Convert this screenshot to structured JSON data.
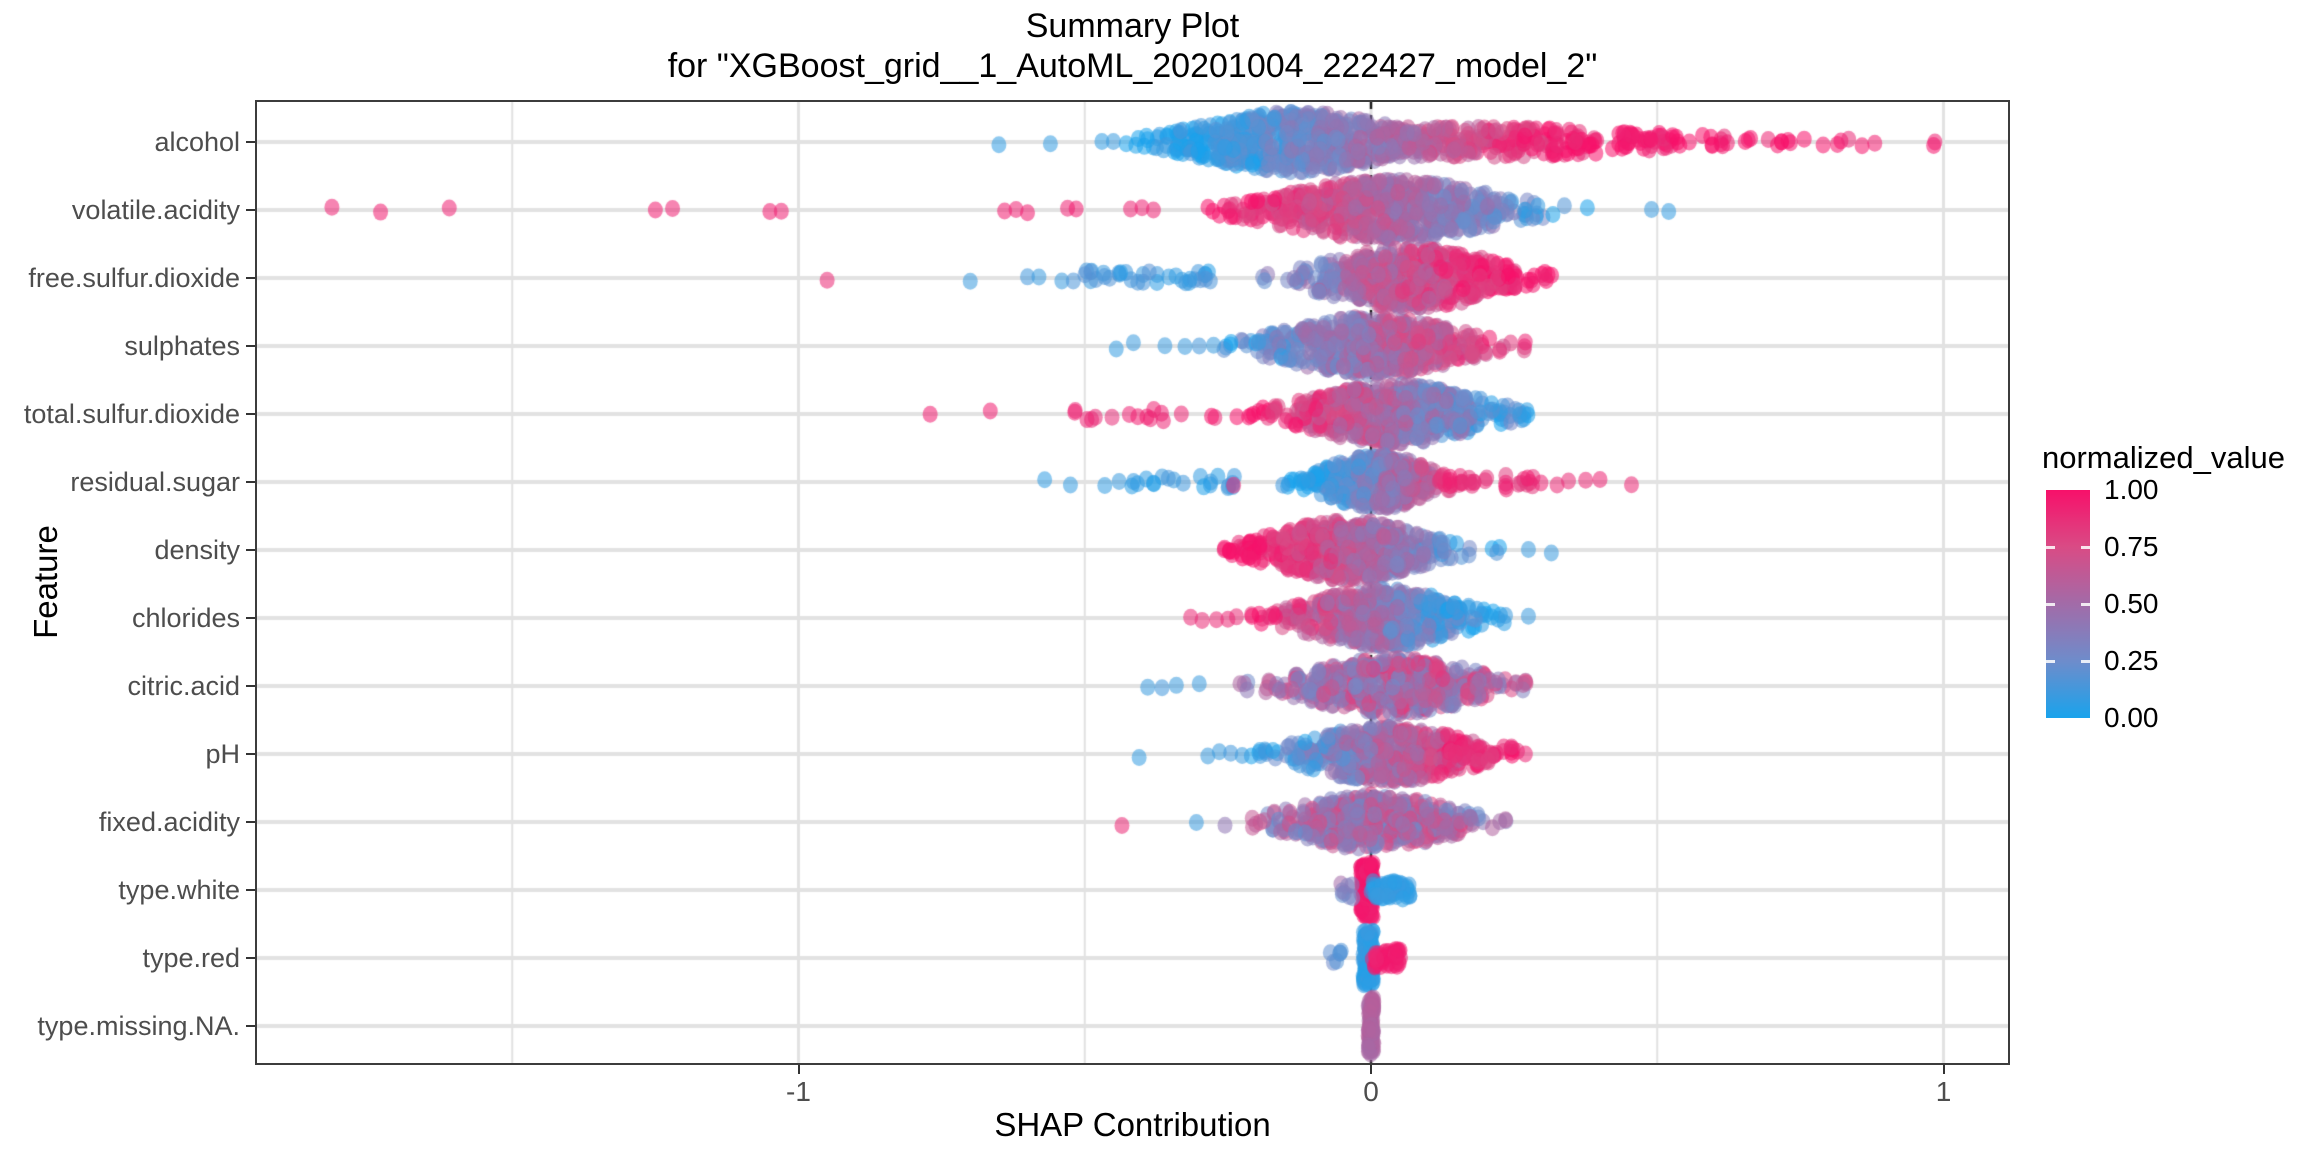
{
  "title": {
    "line1": "Summary Plot",
    "line2": "for \"XGBoost_grid__1_AutoML_20201004_222427_model_2\""
  },
  "axes": {
    "x_title": "SHAP Contribution",
    "y_title": "Feature",
    "x_ticks": [
      {
        "label": "-1",
        "value": -1
      },
      {
        "label": "0",
        "value": 0
      },
      {
        "label": "1",
        "value": 1
      }
    ],
    "x_minor_gridlines": [
      -1.5,
      -0.5,
      0.5
    ],
    "x_range": [
      -1.95,
      1.12
    ]
  },
  "legend": {
    "title": "normalized_value",
    "ticks": [
      {
        "label": "1.00",
        "value": 1.0
      },
      {
        "label": "0.75",
        "value": 0.75
      },
      {
        "label": "0.50",
        "value": 0.5
      },
      {
        "label": "0.25",
        "value": 0.25
      },
      {
        "label": "0.00",
        "value": 0.0
      }
    ],
    "gradient_low_to_high": [
      "#19A3EC",
      "#6E8CCB",
      "#A26BA8",
      "#D94B85",
      "#F7106A"
    ]
  },
  "colors": {
    "zero_line": "#1a1a1a",
    "gridline": "#e2e2e2",
    "panel_border": "#3c3c3c",
    "axis_text": "#4d4d4d",
    "point_alpha": 0.55
  },
  "chart_data": {
    "type": "scatter",
    "subtype": "shap-summary-beeswarm",
    "title": "Summary Plot for \"XGBoost_grid__1_AutoML_20201004_222427_model_2\"",
    "xlabel": "SHAP Contribution",
    "ylabel": "Feature",
    "xlim": [
      -1.95,
      1.12
    ],
    "zero_reference_line": 0,
    "color_scale": {
      "name": "normalized_value",
      "low": 0.0,
      "high": 1.0
    },
    "categories": [
      "alcohol",
      "volatile.acidity",
      "free.sulfur.dioxide",
      "sulphates",
      "total.sulfur.dioxide",
      "residual.sugar",
      "density",
      "chlorides",
      "citric.acid",
      "pH",
      "fixed.acidity",
      "type.white",
      "type.red",
      "type.missing.NA."
    ],
    "features": [
      {
        "name": "alcohol",
        "shap_range": [
          -0.65,
          0.99
        ],
        "color_map": {
          "x0": -0.3,
          "x1": 0.35,
          "noise": 0.16
        },
        "swarms": [
          {
            "center": -0.13,
            "sd": 0.11,
            "min": -0.44,
            "max": 0.3,
            "n": 620,
            "halfwidth": 30
          },
          {
            "center": 0.15,
            "sd": 0.25,
            "min": 0.01,
            "max": 1.0,
            "n": 300,
            "halfwidth": 15
          }
        ],
        "strips": [],
        "outliers": [
          {
            "x": -0.65,
            "t": 0.07
          },
          {
            "x": -0.56,
            "t": 0.08
          },
          {
            "x": -0.47,
            "t": 0.07
          },
          {
            "x": -0.45,
            "t": 0.1
          },
          {
            "x": 0.88,
            "t": 0.95
          },
          {
            "x": 0.985,
            "t": 0.93
          }
        ]
      },
      {
        "name": "volatile.acidity",
        "shap_range": [
          -1.82,
          0.52
        ],
        "color_map": {
          "x0": 0.42,
          "x1": -0.28,
          "noise": 0.16
        },
        "swarms": [
          {
            "center": 0.03,
            "sd": 0.12,
            "min": -0.34,
            "max": 0.5,
            "n": 620,
            "halfwidth": 30
          }
        ],
        "strips": [],
        "outliers": [
          {
            "x": -1.815,
            "t": 0.93
          },
          {
            "x": -1.73,
            "t": 0.95
          },
          {
            "x": -1.61,
            "t": 0.93
          },
          {
            "x": -1.25,
            "t": 0.95
          },
          {
            "x": -1.22,
            "t": 0.93
          },
          {
            "x": -1.05,
            "t": 0.95
          },
          {
            "x": -1.03,
            "t": 0.93
          },
          {
            "x": -0.64,
            "t": 0.95
          },
          {
            "x": -0.62,
            "t": 0.93
          },
          {
            "x": -0.6,
            "t": 0.95
          },
          {
            "x": -0.53,
            "t": 0.93
          },
          {
            "x": -0.515,
            "t": 0.95
          },
          {
            "x": -0.42,
            "t": 0.92
          },
          {
            "x": -0.4,
            "t": 0.93
          },
          {
            "x": -0.38,
            "t": 0.92
          },
          {
            "x": 0.49,
            "t": 0.1
          },
          {
            "x": 0.52,
            "t": 0.08
          }
        ]
      },
      {
        "name": "free.sulfur.dioxide",
        "shap_range": [
          -0.95,
          0.36
        ],
        "color_map": {
          "x0": -0.32,
          "x1": 0.26,
          "noise": 0.2
        },
        "swarms": [
          {
            "center": 0.07,
            "sd": 0.1,
            "min": -0.3,
            "max": 0.36,
            "n": 560,
            "halfwidth": 30
          }
        ],
        "strips": [
          {
            "min": -0.5,
            "max": -0.28,
            "n": 34,
            "jitter_y": 7,
            "t": 0.12,
            "noise": 0.08
          }
        ],
        "outliers": [
          {
            "x": -0.95,
            "t": 0.9
          },
          {
            "x": -0.7,
            "t": 0.1
          },
          {
            "x": -0.6,
            "t": 0.12
          },
          {
            "x": -0.58,
            "t": 0.1
          },
          {
            "x": -0.54,
            "t": 0.1
          },
          {
            "x": -0.52,
            "t": 0.15
          }
        ]
      },
      {
        "name": "sulphates",
        "shap_range": [
          -0.45,
          0.37
        ],
        "color_map": {
          "x0": -0.3,
          "x1": 0.3,
          "noise": 0.2
        },
        "swarms": [
          {
            "center": 0.0,
            "sd": 0.1,
            "min": -0.26,
            "max": 0.37,
            "n": 540,
            "halfwidth": 29
          }
        ],
        "strips": [],
        "outliers": [
          {
            "x": -0.445,
            "t": 0.08
          },
          {
            "x": -0.415,
            "t": 0.1
          },
          {
            "x": -0.36,
            "t": 0.1
          },
          {
            "x": -0.325,
            "t": 0.1
          },
          {
            "x": -0.3,
            "t": 0.12
          },
          {
            "x": -0.275,
            "t": 0.1
          }
        ]
      },
      {
        "name": "total.sulfur.dioxide",
        "shap_range": [
          -0.77,
          0.32
        ],
        "color_map": {
          "x0": 0.3,
          "x1": -0.22,
          "noise": 0.2
        },
        "swarms": [
          {
            "center": 0.04,
            "sd": 0.095,
            "min": -0.3,
            "max": 0.32,
            "n": 560,
            "halfwidth": 30
          }
        ],
        "strips": [
          {
            "min": -0.52,
            "max": -0.3,
            "n": 14,
            "jitter_y": 7,
            "t": 0.92,
            "noise": 0.05
          }
        ],
        "outliers": [
          {
            "x": -0.77,
            "t": 0.95
          },
          {
            "x": -0.665,
            "t": 0.95
          },
          {
            "x": 0.225,
            "t": 0.1
          },
          {
            "x": 0.26,
            "t": 0.1
          }
        ]
      },
      {
        "name": "residual.sugar",
        "shap_range": [
          -0.57,
          0.46
        ],
        "color_map": {
          "x0": -0.1,
          "x1": 0.2,
          "noise": 0.18
        },
        "swarms": [
          {
            "center": 0.01,
            "sd": 0.06,
            "min": -0.18,
            "max": 0.22,
            "n": 440,
            "halfwidth": 27
          }
        ],
        "strips": [
          {
            "min": -0.42,
            "max": -0.22,
            "n": 20,
            "jitter_y": 6,
            "t": 0.08,
            "noise": 0.06
          },
          {
            "min": 0.1,
            "max": 0.3,
            "n": 26,
            "jitter_y": 7,
            "t": 0.88,
            "noise": 0.08
          }
        ],
        "outliers": [
          {
            "x": -0.57,
            "t": 0.07
          },
          {
            "x": -0.525,
            "t": 0.08
          },
          {
            "x": -0.465,
            "t": 0.08
          },
          {
            "x": -0.44,
            "t": 0.1
          },
          {
            "x": -0.24,
            "t": 0.88
          },
          {
            "x": 0.325,
            "t": 0.9
          },
          {
            "x": 0.345,
            "t": 0.88
          },
          {
            "x": 0.375,
            "t": 0.9
          },
          {
            "x": 0.4,
            "t": 0.92
          },
          {
            "x": 0.455,
            "t": 0.9
          }
        ]
      },
      {
        "name": "density",
        "shap_range": [
          -0.27,
          0.32
        ],
        "color_map": {
          "x0": 0.22,
          "x1": -0.2,
          "noise": 0.18
        },
        "swarms": [
          {
            "center": -0.04,
            "sd": 0.085,
            "min": -0.27,
            "max": 0.26,
            "n": 540,
            "halfwidth": 30
          }
        ],
        "strips": [],
        "outliers": [
          {
            "x": 0.275,
            "t": 0.1
          },
          {
            "x": 0.315,
            "t": 0.1
          }
        ]
      },
      {
        "name": "chlorides",
        "shap_range": [
          -0.32,
          0.28
        ],
        "color_map": {
          "x0": 0.2,
          "x1": -0.24,
          "noise": 0.2
        },
        "swarms": [
          {
            "center": 0.02,
            "sd": 0.085,
            "min": -0.21,
            "max": 0.26,
            "n": 520,
            "halfwidth": 29
          }
        ],
        "strips": [],
        "outliers": [
          {
            "x": -0.315,
            "t": 0.9
          },
          {
            "x": -0.295,
            "t": 0.88
          },
          {
            "x": -0.27,
            "t": 0.9
          },
          {
            "x": -0.25,
            "t": 0.9
          },
          {
            "x": -0.235,
            "t": 0.88
          },
          {
            "x": 0.235,
            "t": 0.1
          },
          {
            "x": 0.275,
            "t": 0.1
          }
        ]
      },
      {
        "name": "citric.acid",
        "shap_range": [
          -0.39,
          0.28
        ],
        "color_map": {
          "flat": 0.55,
          "noise": 0.3
        },
        "swarms": [
          {
            "center": 0.04,
            "sd": 0.095,
            "min": -0.28,
            "max": 0.28,
            "n": 500,
            "halfwidth": 28
          }
        ],
        "strips": [],
        "outliers": [
          {
            "x": -0.39,
            "t": 0.1
          },
          {
            "x": -0.365,
            "t": 0.12
          },
          {
            "x": -0.34,
            "t": 0.1
          },
          {
            "x": -0.3,
            "t": 0.1
          },
          {
            "x": 0.185,
            "t": 0.5
          }
        ]
      },
      {
        "name": "pH",
        "shap_range": [
          -0.41,
          0.27
        ],
        "color_map": {
          "x0": -0.22,
          "x1": 0.24,
          "noise": 0.22
        },
        "swarms": [
          {
            "center": 0.03,
            "sd": 0.09,
            "min": -0.24,
            "max": 0.27,
            "n": 500,
            "halfwidth": 28
          }
        ],
        "strips": [
          {
            "min": 0.12,
            "max": 0.27,
            "n": 16,
            "jitter_y": 7,
            "t": 0.85,
            "noise": 0.08
          }
        ],
        "outliers": [
          {
            "x": -0.405,
            "t": 0.08
          },
          {
            "x": -0.285,
            "t": 0.1
          },
          {
            "x": -0.265,
            "t": 0.1
          },
          {
            "x": -0.245,
            "t": 0.12
          },
          {
            "x": -0.225,
            "t": 0.1
          }
        ]
      },
      {
        "name": "fixed.acidity",
        "shap_range": [
          -0.44,
          0.24
        ],
        "color_map": {
          "flat": 0.5,
          "noise": 0.3
        },
        "swarms": [
          {
            "center": 0.0,
            "sd": 0.09,
            "min": -0.26,
            "max": 0.24,
            "n": 480,
            "halfwidth": 27
          }
        ],
        "strips": [],
        "outliers": [
          {
            "x": -0.435,
            "t": 0.9
          },
          {
            "x": -0.305,
            "t": 0.1
          },
          {
            "x": 0.155,
            "t": 0.5
          },
          {
            "x": 0.175,
            "t": 0.45
          },
          {
            "x": 0.225,
            "t": 0.5
          }
        ]
      },
      {
        "name": "type.white",
        "shap_range": [
          -0.06,
          0.07
        ],
        "color_map": {
          "flat": 0.5,
          "noise": 0.0
        },
        "swarms": [],
        "strips": [
          {
            "min": -0.018,
            "max": 0.004,
            "n": 130,
            "jitter_y": 27,
            "t": 0.96,
            "noise": 0.04
          },
          {
            "min": 0.0,
            "max": 0.068,
            "n": 55,
            "jitter_y": 9,
            "t": 0.07,
            "noise": 0.05
          },
          {
            "min": -0.058,
            "max": -0.028,
            "n": 8,
            "jitter_y": 8,
            "t": 0.35,
            "noise": 0.18
          }
        ],
        "outliers": []
      },
      {
        "name": "type.red",
        "shap_range": [
          -0.07,
          0.05
        ],
        "color_map": {
          "flat": 0.5,
          "noise": 0.0
        },
        "swarms": [],
        "strips": [
          {
            "min": -0.014,
            "max": 0.004,
            "n": 130,
            "jitter_y": 27,
            "t": 0.07,
            "noise": 0.05
          },
          {
            "min": 0.002,
            "max": 0.052,
            "n": 45,
            "jitter_y": 9,
            "t": 0.94,
            "noise": 0.04
          },
          {
            "min": -0.072,
            "max": -0.044,
            "n": 6,
            "jitter_y": 7,
            "t": 0.18,
            "noise": 0.08
          }
        ],
        "outliers": []
      },
      {
        "name": "type.missing.NA.",
        "shap_range": [
          -0.01,
          0.01
        ],
        "color_map": {
          "flat": 0.55,
          "noise": 0.0
        },
        "swarms": [],
        "strips": [
          {
            "min": -0.005,
            "max": 0.005,
            "n": 90,
            "jitter_y": 28,
            "t": 0.55,
            "noise": 0.05
          }
        ],
        "outliers": []
      }
    ]
  }
}
